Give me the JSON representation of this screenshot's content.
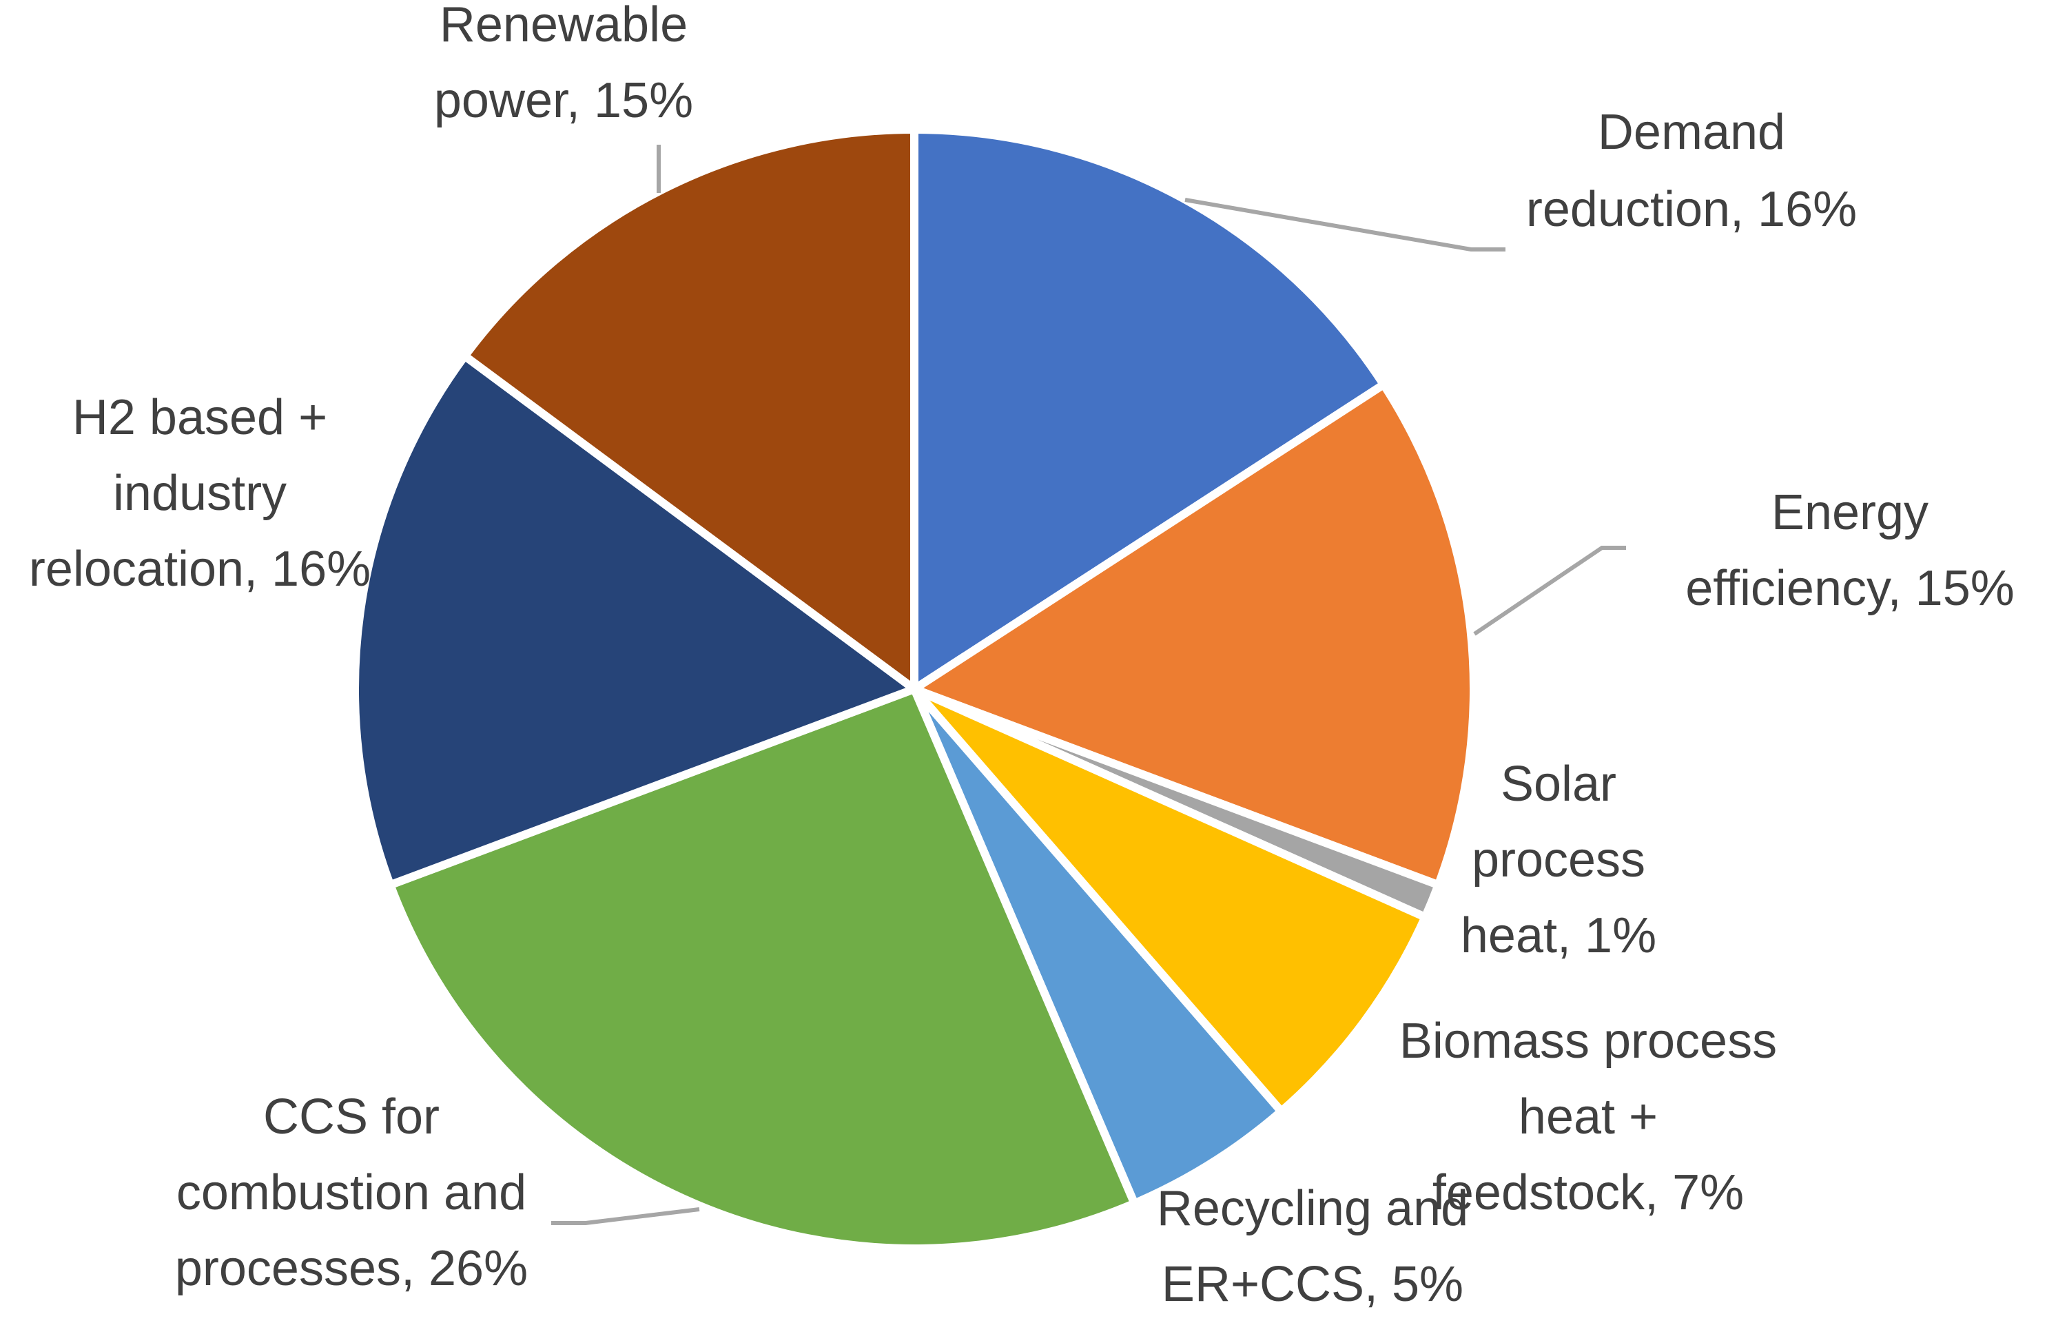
{
  "chart_data": {
    "type": "pie",
    "title": "",
    "slices": [
      {
        "label": "Demand reduction, 16%",
        "name": "Demand reduction",
        "value": 16,
        "color": "#4472C4"
      },
      {
        "label": "Energy efficiency, 15%",
        "name": "Energy efficiency",
        "value": 15,
        "color": "#ED7D31"
      },
      {
        "label": "Solar process heat, 1%",
        "name": "Solar process heat",
        "value": 1,
        "color": "#A5A5A5"
      },
      {
        "label": "Biomass process heat + feedstock, 7%",
        "name": "Biomass process heat + feedstock",
        "value": 7,
        "color": "#FFC000"
      },
      {
        "label": "Recycling and ER+CCS, 5%",
        "name": "Recycling and ER+CCS",
        "value": 5,
        "color": "#5B9BD5"
      },
      {
        "label": "CCS for combustion and processes, 26%",
        "name": "CCS for combustion and processes",
        "value": 26,
        "color": "#70AD47"
      },
      {
        "label": "H2 based + industry relocation, 16%",
        "name": "H2 based + industry relocation",
        "value": 16,
        "color": "#264478"
      },
      {
        "label": "Renewable power, 15%",
        "name": "Renewable power",
        "value": 15,
        "color": "#9E480E"
      }
    ]
  }
}
